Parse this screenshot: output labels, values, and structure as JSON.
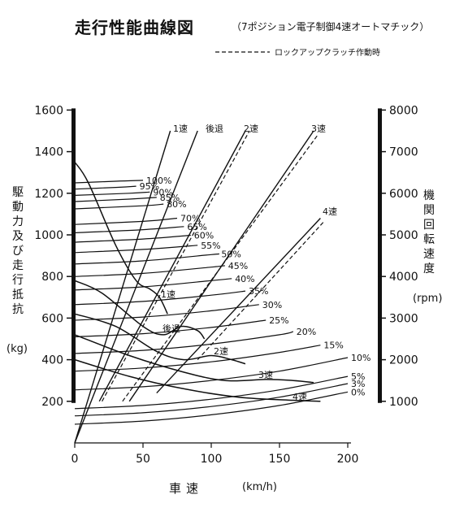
{
  "title": "走行性能曲線図",
  "subtitle": "（7ポジション電子制御4速オートマチック）",
  "chart_data": {
    "type": "line",
    "legend": {
      "dashed": "ロックアップクラッチ作動時",
      "placement": "top-right"
    },
    "xaxis": {
      "label": "車速",
      "unit": "(km/h)",
      "lim": [
        0,
        200
      ],
      "ticks": [
        "0",
        "50",
        "100",
        "150",
        "200"
      ]
    },
    "yaxis_left": {
      "label": "駆動力及び走行抵抗",
      "unit": "(kg)",
      "lim": [
        0,
        1600
      ],
      "ticks": [
        "200",
        "400",
        "600",
        "800",
        "1000",
        "1200",
        "1400",
        "1600"
      ]
    },
    "yaxis_right": {
      "label": "機関回転速度",
      "unit": "(rpm)",
      "lim": [
        0,
        8000
      ],
      "ticks": [
        "1000",
        "2000",
        "3000",
        "4000",
        "5000",
        "6000",
        "7000",
        "8000"
      ]
    },
    "engine_speed_lines": [
      {
        "name": "1速",
        "x": [
          0,
          70
        ],
        "rpm": [
          0,
          7500
        ]
      },
      {
        "name": "後退",
        "x": [
          0,
          90
        ],
        "rpm": [
          0,
          7500
        ]
      },
      {
        "name": "2速",
        "x": [
          18,
          125
        ],
        "rpm": [
          1000,
          7500
        ]
      },
      {
        "name": "3速",
        "x": [
          40,
          175
        ],
        "rpm": [
          1000,
          7500
        ]
      },
      {
        "name": "4速",
        "x": [
          60,
          180
        ],
        "rpm": [
          1200,
          5400
        ]
      }
    ],
    "lockup_lines": [
      {
        "x": [
          20,
          128
        ],
        "rpm": [
          1000,
          7500
        ]
      },
      {
        "x": [
          35,
          178
        ],
        "rpm": [
          1000,
          7400
        ]
      },
      {
        "x": [
          90,
          182
        ],
        "rpm": [
          2000,
          5300
        ]
      }
    ],
    "drive_force_curves": [
      {
        "name": "1速",
        "x": [
          0,
          10,
          30,
          45,
          55,
          62,
          68
        ],
        "y": [
          1350,
          1250,
          950,
          780,
          740,
          700,
          620
        ]
      },
      {
        "name": "後退",
        "x": [
          0,
          20,
          50,
          65,
          78,
          90,
          95
        ],
        "y": [
          780,
          720,
          560,
          520,
          560,
          540,
          500
        ]
      },
      {
        "name": "2速",
        "x": [
          0,
          30,
          60,
          80,
          100,
          115,
          125
        ],
        "y": [
          620,
          560,
          440,
          400,
          420,
          400,
          380
        ]
      },
      {
        "name": "3速",
        "x": [
          0,
          40,
          80,
          110,
          140,
          160,
          175
        ],
        "y": [
          520,
          420,
          340,
          300,
          305,
          300,
          290
        ]
      },
      {
        "name": "4速",
        "x": [
          0,
          40,
          80,
          120,
          160,
          180
        ],
        "y": [
          400,
          320,
          260,
          220,
          205,
          200
        ]
      }
    ],
    "resistance_curves": [
      {
        "grade": "0%",
        "x": [
          0,
          50,
          100,
          150,
          200
        ],
        "y": [
          90,
          105,
          135,
          180,
          245
        ]
      },
      {
        "grade": "3%",
        "x": [
          0,
          50,
          100,
          150,
          200
        ],
        "y": [
          130,
          145,
          175,
          220,
          285
        ]
      },
      {
        "grade": "5%",
        "x": [
          0,
          50,
          100,
          150,
          200
        ],
        "y": [
          165,
          180,
          210,
          255,
          320
        ]
      },
      {
        "grade": "10%",
        "x": [
          0,
          50,
          100,
          150,
          200
        ],
        "y": [
          255,
          270,
          300,
          345,
          410
        ]
      },
      {
        "grade": "15%",
        "x": [
          0,
          50,
          100,
          150,
          180
        ],
        "y": [
          345,
          360,
          390,
          435,
          470
        ]
      },
      {
        "grade": "20%",
        "x": [
          0,
          50,
          100,
          150,
          160
        ],
        "y": [
          430,
          445,
          475,
          520,
          535
        ]
      },
      {
        "grade": "25%",
        "x": [
          0,
          50,
          100,
          140
        ],
        "y": [
          510,
          525,
          555,
          590
        ]
      },
      {
        "grade": "30%",
        "x": [
          0,
          50,
          100,
          135
        ],
        "y": [
          590,
          605,
          635,
          665
        ]
      },
      {
        "grade": "35%",
        "x": [
          0,
          50,
          100,
          125
        ],
        "y": [
          665,
          680,
          710,
          730
        ]
      },
      {
        "grade": "40%",
        "x": [
          0,
          50,
          100,
          115
        ],
        "y": [
          735,
          750,
          780,
          790
        ]
      },
      {
        "grade": "45%",
        "x": [
          0,
          50,
          100,
          110
        ],
        "y": [
          800,
          815,
          845,
          852
        ]
      },
      {
        "grade": "50%",
        "x": [
          0,
          50,
          100,
          105
        ],
        "y": [
          860,
          875,
          905,
          908
        ]
      },
      {
        "grade": "55%",
        "x": [
          0,
          50,
          90
        ],
        "y": [
          915,
          930,
          950
        ]
      },
      {
        "grade": "60%",
        "x": [
          0,
          50,
          85
        ],
        "y": [
          965,
          980,
          998
        ]
      },
      {
        "grade": "65%",
        "x": [
          0,
          50,
          80
        ],
        "y": [
          1010,
          1025,
          1040
        ]
      },
      {
        "grade": "70%",
        "x": [
          0,
          50,
          75
        ],
        "y": [
          1050,
          1065,
          1080
        ]
      },
      {
        "grade": "80%",
        "x": [
          0,
          50,
          65
        ],
        "y": [
          1125,
          1140,
          1148
        ]
      },
      {
        "grade": "85%",
        "x": [
          0,
          40,
          60
        ],
        "y": [
          1160,
          1172,
          1180
        ]
      },
      {
        "grade": "90%",
        "x": [
          0,
          40,
          55
        ],
        "y": [
          1190,
          1200,
          1206
        ]
      },
      {
        "grade": "95%",
        "x": [
          0,
          30,
          45
        ],
        "y": [
          1220,
          1228,
          1234
        ]
      },
      {
        "grade": "100%",
        "x": [
          0,
          30,
          50
        ],
        "y": [
          1250,
          1258,
          1262
        ]
      }
    ],
    "gear_labels_top": [
      "1速",
      "後退",
      "2速",
      "3速"
    ],
    "gear_labels_mid": [
      "1速",
      "後退",
      "2速",
      "3速",
      "4速"
    ],
    "gear_label_4": "4速"
  }
}
